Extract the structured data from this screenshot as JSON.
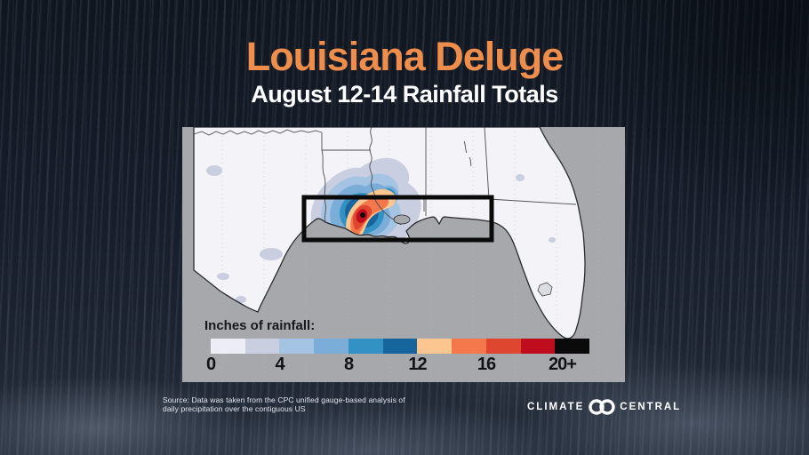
{
  "header": {
    "title": "Louisiana Deluge",
    "subtitle": "August 12-14 Rainfall Totals"
  },
  "colors": {
    "accent_orange": "#ef8d4c",
    "background_navy": "#151b27",
    "map_water": "#a6a8ab",
    "map_land": "#f3f3f8",
    "highlight_box": "#0a0a0a"
  },
  "legend": {
    "label": "Inches of rainfall:",
    "ticks": [
      "0",
      "4",
      "8",
      "12",
      "16",
      "20+"
    ],
    "segment_colors": [
      "#ededf5",
      "#c9cee1",
      "#a5c3e3",
      "#7aaed9",
      "#3391c3",
      "#17659d",
      "#fcc690",
      "#f4784c",
      "#de462f",
      "#c00d1d",
      "#0a0a0a"
    ]
  },
  "footer": {
    "source_line1": "Source: Data was taken from the CPC unified gauge-based analysis of",
    "source_line2": "daily precipitation over the contiguous US",
    "logo_left": "CLIMATE",
    "logo_right": "CENTRAL"
  },
  "chart_data": {
    "type": "heatmap",
    "title": "Louisiana Deluge",
    "subtitle": "August 12-14 Rainfall Totals",
    "unit": "inches of rainfall",
    "legend_bin_edges": [
      0,
      2,
      4,
      6,
      8,
      10,
      12,
      14,
      16,
      18,
      20
    ],
    "legend_tick_labels": [
      "0",
      "4",
      "8",
      "12",
      "16",
      "20+"
    ],
    "max_category": "20+",
    "peak_region": "southern Louisiana, inside black highlight box",
    "depicted_area": "U.S. Gulf Coast from Texas to Florida"
  }
}
